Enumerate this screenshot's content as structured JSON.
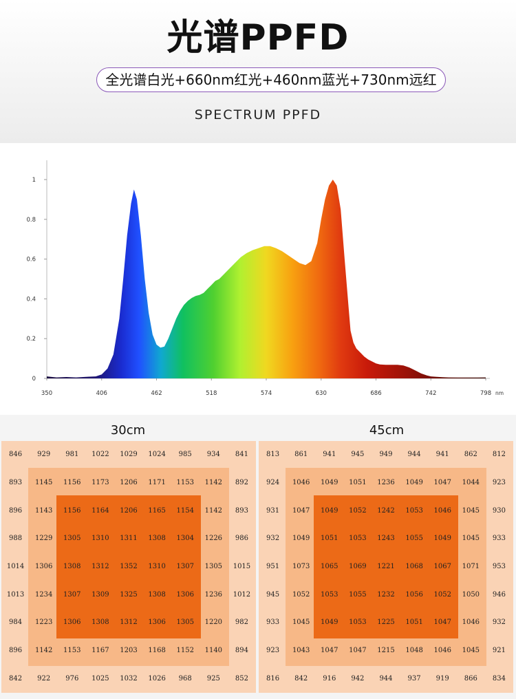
{
  "header": {
    "title": "光谱PPFD",
    "pill_text": "全光谱白光+660nm红光+460nm蓝光+730nm远红",
    "subtitle": "SPECTRUM PPFD"
  },
  "chart_data": [
    {
      "type": "area",
      "xunit": "nm",
      "xlim": [
        350,
        810
      ],
      "ylim": [
        0,
        1.05
      ],
      "xticks": [
        350,
        406,
        462,
        518,
        574,
        630,
        686,
        742,
        798
      ],
      "yticks": [
        0,
        0.2,
        0.4,
        0.6,
        0.8,
        1
      ],
      "series": [
        {
          "x": [
            350,
            360,
            370,
            380,
            390,
            400,
            406,
            412,
            418,
            424,
            428,
            432,
            436,
            439,
            442,
            446,
            450,
            454,
            458,
            462,
            466,
            470,
            474,
            478,
            482,
            486,
            490,
            494,
            498,
            502,
            506,
            510,
            514,
            518,
            522,
            526,
            530,
            536,
            542,
            548,
            554,
            560,
            566,
            572,
            578,
            584,
            590,
            596,
            602,
            608,
            614,
            620,
            626,
            630,
            634,
            638,
            642,
            646,
            650,
            654,
            658,
            660,
            663,
            666,
            670,
            674,
            678,
            682,
            686,
            690,
            696,
            702,
            708,
            714,
            720,
            726,
            732,
            738,
            742,
            748,
            754,
            760,
            770,
            780,
            790,
            798
          ],
          "y": [
            0.01,
            0.005,
            0.007,
            0.005,
            0.008,
            0.01,
            0.02,
            0.05,
            0.12,
            0.3,
            0.5,
            0.72,
            0.88,
            0.95,
            0.9,
            0.72,
            0.5,
            0.33,
            0.22,
            0.17,
            0.155,
            0.16,
            0.2,
            0.25,
            0.3,
            0.34,
            0.37,
            0.39,
            0.405,
            0.415,
            0.42,
            0.43,
            0.45,
            0.47,
            0.49,
            0.5,
            0.52,
            0.55,
            0.58,
            0.61,
            0.63,
            0.645,
            0.655,
            0.665,
            0.665,
            0.655,
            0.64,
            0.62,
            0.6,
            0.58,
            0.57,
            0.59,
            0.68,
            0.8,
            0.9,
            0.97,
            1.0,
            0.97,
            0.85,
            0.6,
            0.36,
            0.24,
            0.18,
            0.15,
            0.13,
            0.11,
            0.095,
            0.085,
            0.075,
            0.07,
            0.068,
            0.068,
            0.068,
            0.065,
            0.055,
            0.04,
            0.025,
            0.015,
            0.01,
            0.008,
            0.006,
            0.005,
            0.004,
            0.004,
            0.004,
            0.005
          ]
        }
      ]
    },
    {
      "type": "table",
      "title": "30cm",
      "rows": [
        [
          846,
          929,
          981,
          1022,
          1029,
          1024,
          985,
          934,
          841
        ],
        [
          893,
          1145,
          1156,
          1173,
          1206,
          1171,
          1153,
          1142,
          892
        ],
        [
          896,
          1143,
          1156,
          1164,
          1206,
          1165,
          1154,
          1142,
          893
        ],
        [
          988,
          1229,
          1305,
          1310,
          1311,
          1308,
          1304,
          1226,
          986
        ],
        [
          1014,
          1306,
          1308,
          1312,
          1352,
          1310,
          1307,
          1305,
          1015
        ],
        [
          1013,
          1234,
          1307,
          1309,
          1325,
          1308,
          1306,
          1236,
          1012
        ],
        [
          984,
          1223,
          1306,
          1308,
          1312,
          1306,
          1305,
          1220,
          982
        ],
        [
          896,
          1142,
          1153,
          1167,
          1203,
          1168,
          1152,
          1140,
          894
        ],
        [
          842,
          922,
          976,
          1025,
          1032,
          1026,
          968,
          925,
          852
        ]
      ]
    },
    {
      "type": "table",
      "title": "45cm",
      "rows": [
        [
          813,
          861,
          941,
          945,
          949,
          944,
          941,
          862,
          812
        ],
        [
          924,
          1046,
          1049,
          1051,
          1236,
          1049,
          1047,
          1044,
          923
        ],
        [
          931,
          1047,
          1049,
          1052,
          1242,
          1053,
          1046,
          1045,
          930
        ],
        [
          932,
          1049,
          1051,
          1053,
          1243,
          1055,
          1049,
          1045,
          933
        ],
        [
          951,
          1073,
          1065,
          1069,
          1221,
          1068,
          1067,
          1071,
          953
        ],
        [
          945,
          1052,
          1053,
          1055,
          1232,
          1056,
          1052,
          1050,
          946
        ],
        [
          933,
          1045,
          1049,
          1053,
          1225,
          1051,
          1047,
          1046,
          932
        ],
        [
          923,
          1043,
          1047,
          1047,
          1215,
          1048,
          1046,
          1045,
          921
        ],
        [
          816,
          842,
          916,
          942,
          944,
          937,
          919,
          866,
          834
        ]
      ]
    }
  ]
}
